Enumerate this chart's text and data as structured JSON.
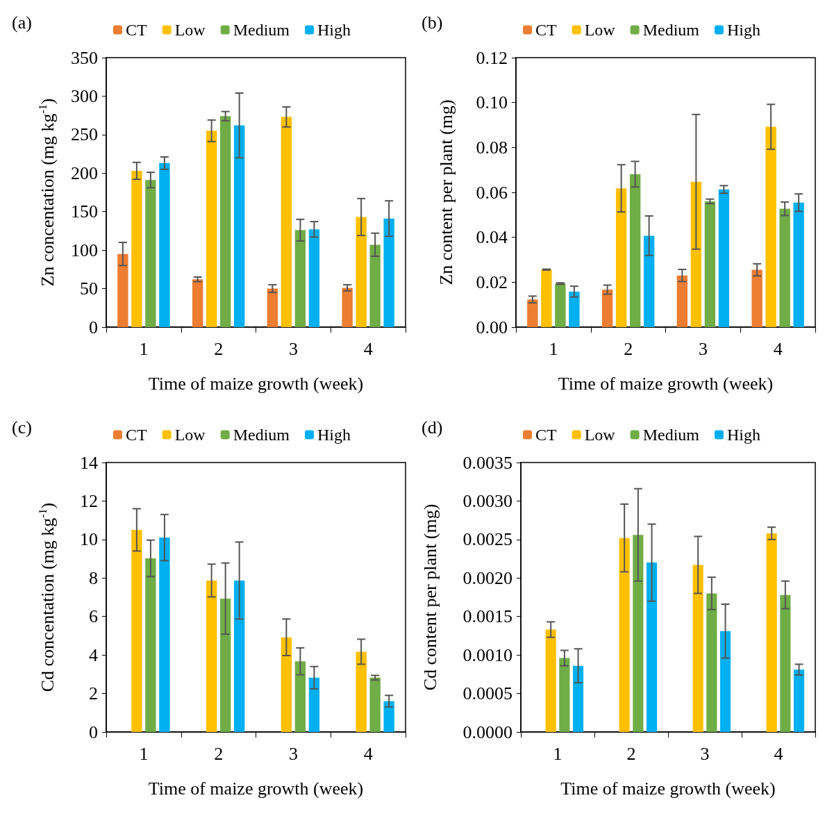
{
  "chart_data": [
    {
      "type": "bar",
      "title": "(a)",
      "xlabel": "Time of maize growth (week)",
      "ylabel": "Zn concentation (mg kg$^{-1}$)",
      "categories": [
        "1",
        "2",
        "3",
        "4"
      ],
      "ylim": [
        0,
        350
      ],
      "yticks": [
        0,
        50,
        100,
        150,
        200,
        250,
        300,
        350
      ],
      "grid": false,
      "legend": "top",
      "series": [
        {
          "name": "CT",
          "color": "#ed7d31",
          "values": [
            95,
            62,
            50,
            51
          ],
          "errors": [
            15,
            3,
            5,
            4
          ]
        },
        {
          "name": "Low",
          "color": "#ffc000",
          "values": [
            203,
            255,
            273,
            143
          ],
          "errors": [
            11,
            14,
            13,
            24
          ]
        },
        {
          "name": "Medium",
          "color": "#70ad47",
          "values": [
            191,
            274,
            126,
            107
          ],
          "errors": [
            10,
            6,
            14,
            15
          ]
        },
        {
          "name": "High",
          "color": "#00b0f0",
          "values": [
            213,
            262,
            127,
            141
          ],
          "errors": [
            8,
            42,
            10,
            23
          ]
        }
      ]
    },
    {
      "type": "bar",
      "title": "(b)",
      "xlabel": "Time of maize growth (week)",
      "ylabel": "Zn content per plant (mg)",
      "categories": [
        "1",
        "2",
        "3",
        "4"
      ],
      "ylim": [
        0,
        0.12
      ],
      "yticks": [
        {
          "value": 0,
          "label": "0.00"
        },
        {
          "value": 0.02,
          "label": "0.02"
        },
        {
          "value": 0.04,
          "label": "0.04"
        },
        {
          "value": 0.06,
          "label": "0.06"
        },
        {
          "value": 0.08,
          "label": "0.08"
        },
        {
          "value": 0.1,
          "label": "0.10"
        },
        {
          "value": 0.12,
          "label": "0.12"
        }
      ],
      "grid": false,
      "legend": "top",
      "series": [
        {
          "name": "CT",
          "color": "#ed7d31",
          "values": [
            0.0123,
            0.0167,
            0.023,
            0.0255
          ],
          "errors": [
            0.0015,
            0.002,
            0.0027,
            0.0027
          ]
        },
        {
          "name": "Low",
          "color": "#ffc000",
          "values": [
            0.0256,
            0.0618,
            0.0647,
            0.0892
          ],
          "errors": [
            0.0002,
            0.0105,
            0.03,
            0.01
          ]
        },
        {
          "name": "Medium",
          "color": "#70ad47",
          "values": [
            0.0194,
            0.0681,
            0.056,
            0.0527
          ],
          "errors": [
            0.0003,
            0.0057,
            0.001,
            0.003
          ]
        },
        {
          "name": "High",
          "color": "#00b0f0",
          "values": [
            0.0158,
            0.0407,
            0.0613,
            0.0554
          ],
          "errors": [
            0.0024,
            0.0088,
            0.0017,
            0.0039
          ]
        }
      ]
    },
    {
      "type": "bar",
      "title": "(c)",
      "xlabel": "Time of maize growth (week)",
      "ylabel": "Cd concentation (mg kg$^{-1}$)",
      "categories": [
        "1",
        "2",
        "3",
        "4"
      ],
      "ylim": [
        0,
        14
      ],
      "yticks": [
        0,
        2,
        4,
        6,
        8,
        10,
        12,
        14
      ],
      "grid": false,
      "legend": "top",
      "series": [
        {
          "name": "CT",
          "color": "#ed7d31",
          "values": [
            null,
            null,
            null,
            null
          ]
        },
        {
          "name": "Low",
          "color": "#ffc000",
          "values": [
            10.5,
            7.87,
            4.92,
            4.17
          ],
          "errors": [
            1.1,
            0.85,
            0.95,
            0.65
          ]
        },
        {
          "name": "Medium",
          "color": "#70ad47",
          "values": [
            9.02,
            6.93,
            3.67,
            2.82
          ],
          "errors": [
            0.95,
            1.85,
            0.7,
            0.12
          ]
        },
        {
          "name": "High",
          "color": "#00b0f0",
          "values": [
            10.1,
            7.87,
            2.82,
            1.6
          ],
          "errors": [
            1.2,
            2.0,
            0.58,
            0.3
          ]
        }
      ]
    },
    {
      "type": "bar",
      "title": "(d)",
      "xlabel": "Time of maize growth (week)",
      "ylabel": "Cd content per plant (mg)",
      "categories": [
        "1",
        "2",
        "3",
        "4"
      ],
      "ylim": [
        0,
        0.0035
      ],
      "yticks": [
        {
          "value": 0,
          "label": "0.0000"
        },
        {
          "value": 0.0005,
          "label": "0.0005"
        },
        {
          "value": 0.001,
          "label": "0.0010"
        },
        {
          "value": 0.0015,
          "label": "0.0015"
        },
        {
          "value": 0.002,
          "label": "0.0020"
        },
        {
          "value": 0.0025,
          "label": "0.0025"
        },
        {
          "value": 0.003,
          "label": "0.0030"
        },
        {
          "value": 0.0035,
          "label": "0.0035"
        }
      ],
      "grid": false,
      "legend": "top",
      "series": [
        {
          "name": "CT",
          "color": "#ed7d31",
          "values": [
            null,
            null,
            null,
            null
          ]
        },
        {
          "name": "Low",
          "color": "#ffc000",
          "values": [
            0.00133,
            0.00252,
            0.00217,
            0.00258
          ],
          "errors": [
            0.0001,
            0.00044,
            0.00037,
            8e-05
          ]
        },
        {
          "name": "Medium",
          "color": "#70ad47",
          "values": [
            0.00096,
            0.00256,
            0.0018,
            0.00178
          ],
          "errors": [
            0.0001,
            0.0006,
            0.00021,
            0.00018
          ]
        },
        {
          "name": "High",
          "color": "#00b0f0",
          "values": [
            0.00086,
            0.0022,
            0.00131,
            0.00081
          ],
          "errors": [
            0.00022,
            0.0005,
            0.00035,
            7e-05
          ]
        }
      ]
    }
  ]
}
